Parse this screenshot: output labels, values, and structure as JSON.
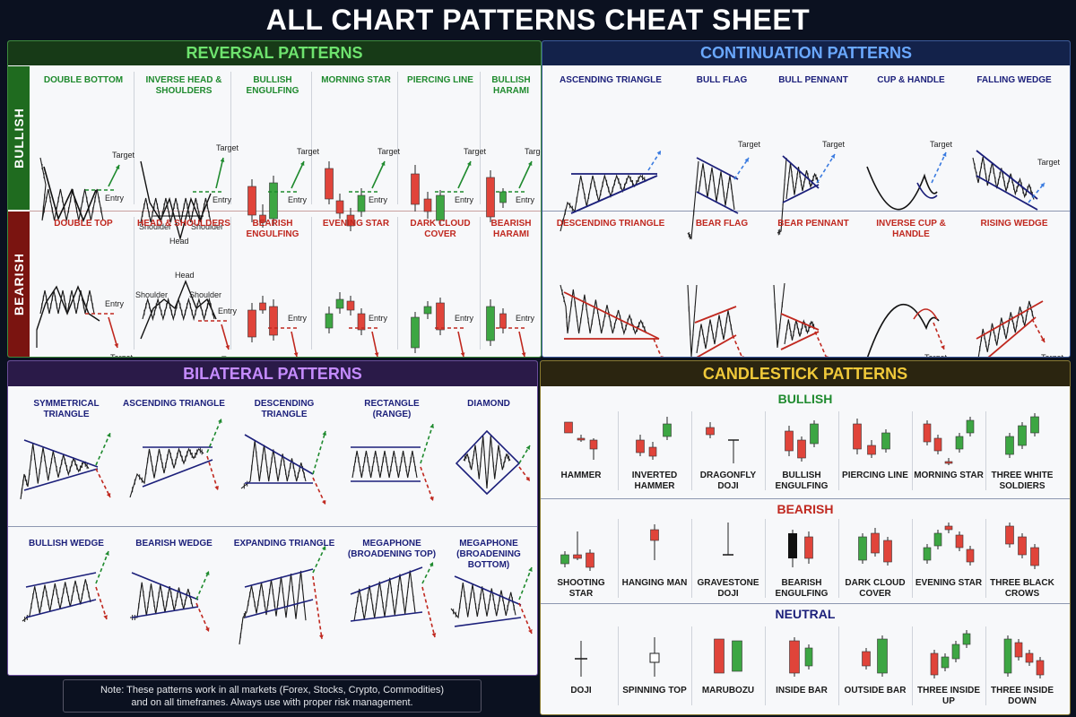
{
  "title": "ALL CHART PATTERNS CHEAT SHEET",
  "reversal": {
    "title": "REVERSAL PATTERNS",
    "bullish_side": "BULLISH",
    "bearish_side": "BEARISH",
    "bullish": [
      {
        "label": "DOUBLE BOTTOM",
        "kind": "double-bottom"
      },
      {
        "label": "INVERSE HEAD &\nSHOULDERS",
        "kind": "ihs"
      },
      {
        "label": "BULLISH\nENGULFING",
        "kind": "c-bull-engulf"
      },
      {
        "label": "MORNING STAR",
        "kind": "c-morning"
      },
      {
        "label": "PIERCING LINE",
        "kind": "c-piercing"
      },
      {
        "label": "BULLISH\nHARAMI",
        "kind": "c-bull-harami"
      }
    ],
    "bearish": [
      {
        "label": "DOUBLE TOP",
        "kind": "double-top"
      },
      {
        "label": "HEAD & SHOULDERS",
        "kind": "hs"
      },
      {
        "label": "BEARISH\nENGULFING",
        "kind": "c-bear-engulf"
      },
      {
        "label": "EVENING STAR",
        "kind": "c-evening"
      },
      {
        "label": "DARK CLOUD\nCOVER",
        "kind": "c-darkcloud"
      },
      {
        "label": "BEARISH\nHARAMI",
        "kind": "c-bear-harami"
      }
    ],
    "words": {
      "target": "Target",
      "entry": "Entry",
      "shoulder": "Shoulder",
      "head": "Head"
    }
  },
  "continuation": {
    "title": "CONTINUATION PATTERNS",
    "top": [
      {
        "label": "ASCENDING TRIANGLE",
        "kind": "asc-tri-up"
      },
      {
        "label": "BULL FLAG",
        "kind": "bull-flag"
      },
      {
        "label": "BULL PENNANT",
        "kind": "bull-pennant"
      },
      {
        "label": "CUP & HANDLE",
        "kind": "cup"
      },
      {
        "label": "FALLING WEDGE",
        "kind": "falling-wedge"
      }
    ],
    "bottom": [
      {
        "label": "DESCENDING TRIANGLE",
        "kind": "desc-tri-down"
      },
      {
        "label": "BEAR FLAG",
        "kind": "bear-flag"
      },
      {
        "label": "BEAR PENNANT",
        "kind": "bear-pennant"
      },
      {
        "label": "INVERSE CUP &\nHANDLE",
        "kind": "inv-cup"
      },
      {
        "label": "RISING WEDGE",
        "kind": "rising-wedge"
      }
    ]
  },
  "bilateral": {
    "title": "BILATERAL PATTERNS",
    "top": [
      {
        "label": "SYMMETRICAL\nTRIANGLE",
        "kind": "sym"
      },
      {
        "label": "ASCENDING TRIANGLE",
        "kind": "asc"
      },
      {
        "label": "DESCENDING TRIANGLE",
        "kind": "desc"
      },
      {
        "label": "RECTANGLE\n(RANGE)",
        "kind": "rect"
      },
      {
        "label": "DIAMOND",
        "kind": "diamond"
      }
    ],
    "bottom": [
      {
        "label": "BULLISH WEDGE",
        "kind": "bw"
      },
      {
        "label": "BEARISH WEDGE",
        "kind": "brw"
      },
      {
        "label": "EXPANDING TRIANGLE",
        "kind": "exp"
      },
      {
        "label": "MEGAPHONE\n(BROADENING TOP)",
        "kind": "megt"
      },
      {
        "label": "MEGAPHONE\n(BROADENING BOTTOM)",
        "kind": "megb"
      }
    ]
  },
  "candlestick": {
    "title": "CANDLESTICK PATTERNS",
    "bullish_title": "BULLISH",
    "bearish_title": "BEARISH",
    "neutral_title": "NEUTRAL",
    "bullish": [
      {
        "label": "HAMMER",
        "kind": "hammer"
      },
      {
        "label": "INVERTED\nHAMMER",
        "kind": "inv-hammer"
      },
      {
        "label": "DRAGONFLY\nDOJI",
        "kind": "dragonfly"
      },
      {
        "label": "BULLISH\nENGULFING",
        "kind": "bull-engulf"
      },
      {
        "label": "PIERCING LINE",
        "kind": "piercing"
      },
      {
        "label": "MORNING STAR",
        "kind": "morning"
      },
      {
        "label": "THREE WHITE\nSOLDIERS",
        "kind": "tws"
      }
    ],
    "bearish": [
      {
        "label": "SHOOTING STAR",
        "kind": "shooting"
      },
      {
        "label": "HANGING MAN",
        "kind": "hanging"
      },
      {
        "label": "GRAVESTONE\nDOJI",
        "kind": "gravestone"
      },
      {
        "label": "BEARISH\nENGULFING",
        "kind": "bear-engulf"
      },
      {
        "label": "DARK CLOUD\nCOVER",
        "kind": "darkcloud"
      },
      {
        "label": "EVENING STAR",
        "kind": "evening"
      },
      {
        "label": "THREE BLACK\nCROWS",
        "kind": "tbc"
      }
    ],
    "neutral": [
      {
        "label": "DOJI",
        "kind": "doji"
      },
      {
        "label": "SPINNING TOP",
        "kind": "spinning"
      },
      {
        "label": "MARUBOZU",
        "kind": "marubozu"
      },
      {
        "label": "INSIDE BAR",
        "kind": "inside"
      },
      {
        "label": "OUTSIDE BAR",
        "kind": "outside"
      },
      {
        "label": "THREE INSIDE UP",
        "kind": "tiu"
      },
      {
        "label": "THREE INSIDE DOWN",
        "kind": "tid"
      }
    ]
  },
  "note": "Note: These patterns work in all markets (Forex, Stocks, Crypto, Commodities)\nand on all timeframes. Always use with proper risk management.",
  "colors": {
    "bg": "#0b1120",
    "bull_green": "#1f8a2e",
    "bear_red": "#c0281f",
    "candle_green": "#3da643",
    "candle_red": "#e0443a",
    "navy": "#1b1f7a",
    "reversal_header": "#6ee36e",
    "continuation_header": "#6aa8ff",
    "bilateral_header": "#c58cff",
    "candlestick_header": "#f0c93a"
  }
}
